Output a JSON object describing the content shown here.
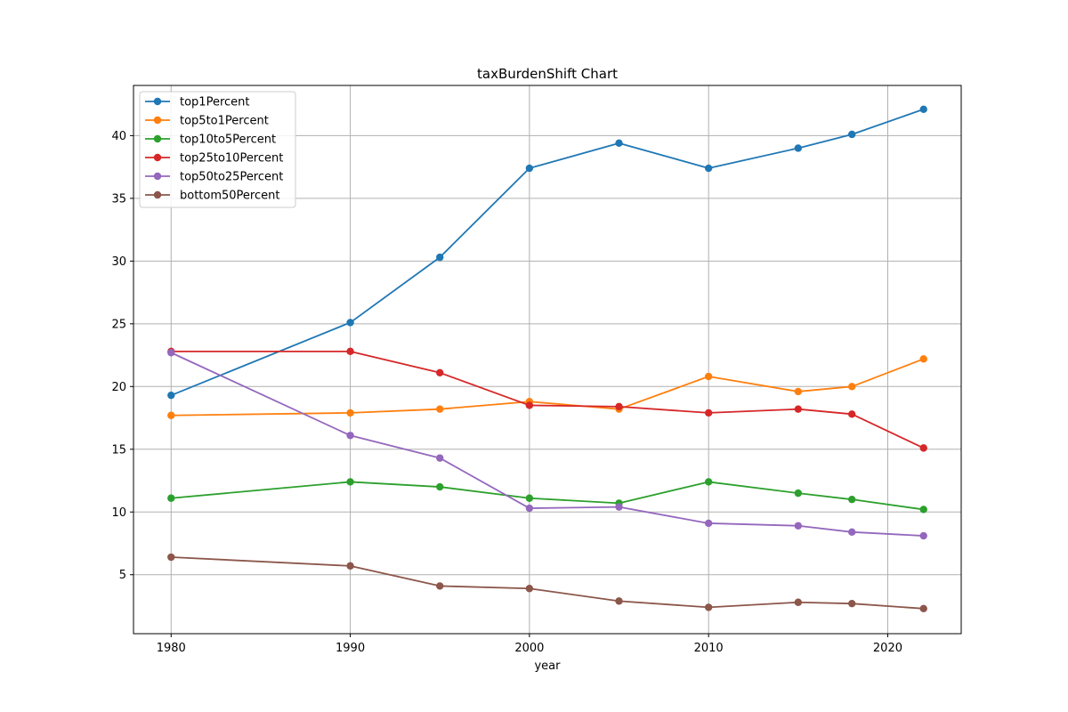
{
  "chart_data": {
    "type": "line",
    "title": "taxBurdenShift Chart",
    "xlabel": "year",
    "ylabel": "",
    "x": [
      1980,
      1990,
      1995,
      2000,
      2005,
      2010,
      2015,
      2018,
      2022
    ],
    "xlim": [
      1977.9,
      2024.1
    ],
    "ylim": [
      0.3,
      44.0
    ],
    "x_ticks": [
      1980,
      1990,
      2000,
      2010,
      2020
    ],
    "y_ticks": [
      5,
      10,
      15,
      20,
      25,
      30,
      35,
      40
    ],
    "grid": true,
    "legend_position": "top-left",
    "series": [
      {
        "name": "top1Percent",
        "color": "#1f77b4",
        "values": [
          19.3,
          25.1,
          30.3,
          37.4,
          39.4,
          37.4,
          39.0,
          40.1,
          42.1
        ]
      },
      {
        "name": "top5to1Percent",
        "color": "#ff7f0e",
        "values": [
          17.7,
          17.9,
          18.2,
          18.8,
          18.2,
          20.8,
          19.6,
          20.0,
          22.2
        ]
      },
      {
        "name": "top10to5Percent",
        "color": "#2ca02c",
        "values": [
          11.1,
          12.4,
          12.0,
          11.1,
          10.7,
          12.4,
          11.5,
          11.0,
          10.2
        ]
      },
      {
        "name": "top25to10Percent",
        "color": "#d62728",
        "values": [
          22.8,
          22.8,
          21.1,
          18.5,
          18.4,
          17.9,
          18.2,
          17.8,
          15.1
        ]
      },
      {
        "name": "top50to25Percent",
        "color": "#9467bd",
        "values": [
          22.7,
          16.1,
          14.3,
          10.3,
          10.4,
          9.1,
          8.9,
          8.4,
          8.1
        ]
      },
      {
        "name": "bottom50Percent",
        "color": "#8c564b",
        "values": [
          6.4,
          5.7,
          4.1,
          3.9,
          2.9,
          2.4,
          2.8,
          2.7,
          2.3
        ]
      }
    ]
  }
}
